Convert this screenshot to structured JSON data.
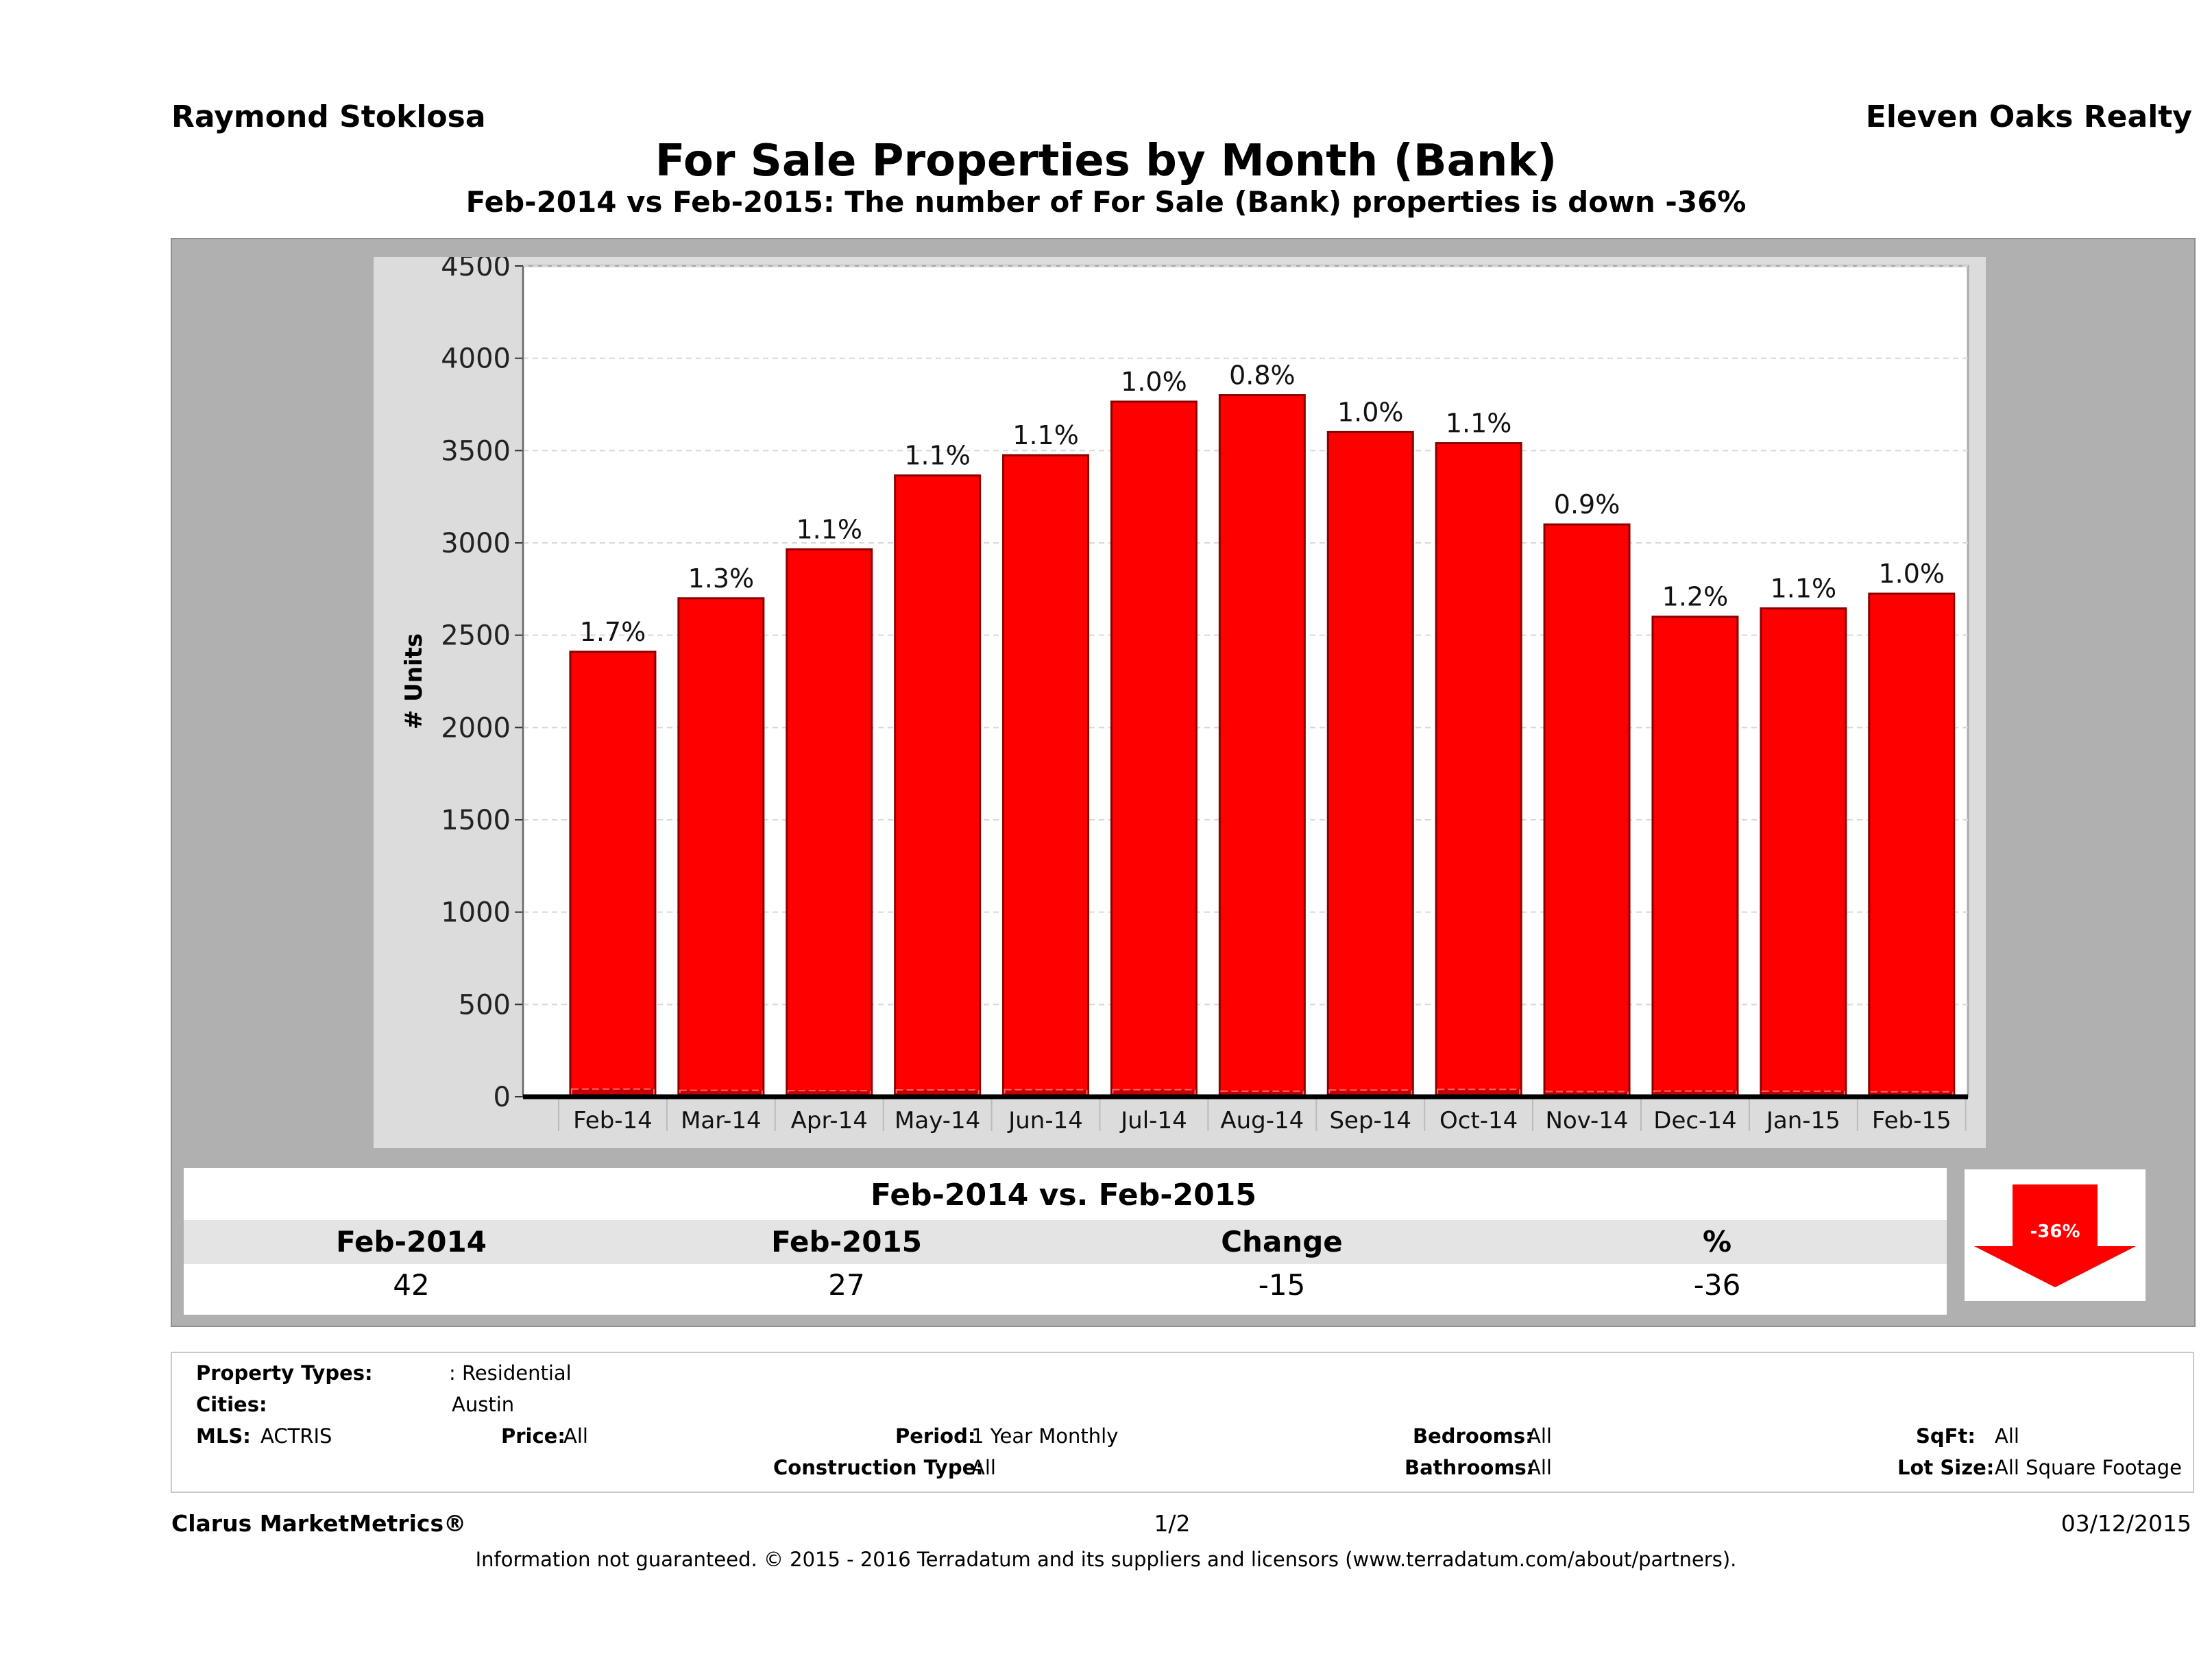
{
  "header": {
    "agent": "Raymond Stoklosa",
    "company": "Eleven Oaks Realty",
    "title": "For Sale Properties by Month (Bank)",
    "subtitle": "Feb-2014 vs Feb-2015: The number of For Sale (Bank)  properties is down -36%"
  },
  "chart_data": {
    "type": "bar",
    "ylabel": "# Units",
    "ylim": [
      0,
      4500
    ],
    "yticks": [
      0,
      500,
      1000,
      1500,
      2000,
      2500,
      3000,
      3500,
      4000,
      4500
    ],
    "grid": true,
    "categories": [
      "Feb-14",
      "Mar-14",
      "Apr-14",
      "May-14",
      "Jun-14",
      "Jul-14",
      "Aug-14",
      "Sep-14",
      "Oct-14",
      "Nov-14",
      "Dec-14",
      "Jan-15",
      "Feb-15"
    ],
    "series": [
      {
        "values": [
          2410,
          2700,
          2965,
          3365,
          3475,
          3765,
          3800,
          3600,
          3540,
          3100,
          2600,
          2645,
          2725
        ],
        "labels": [
          "1.7%",
          "1.3%",
          "1.1%",
          "1.1%",
          "1.1%",
          "1.0%",
          "0.8%",
          "1.0%",
          "1.1%",
          "0.9%",
          "1.2%",
          "1.1%",
          "1.0%"
        ],
        "color": "#ff0000"
      },
      {
        "values": [
          42,
          35,
          33,
          37,
          38,
          38,
          30,
          36,
          40,
          28,
          31,
          30,
          27
        ],
        "color": "#c40000"
      }
    ]
  },
  "comparison": {
    "title": "Feb-2014 vs. Feb-2015",
    "headers": [
      "Feb-2014",
      "Feb-2015",
      "Change",
      "%"
    ],
    "values": [
      "42",
      "27",
      "-15",
      "-36"
    ],
    "badge": "-36%",
    "badge_color": "#ff0000"
  },
  "criteria": {
    "property_types_label": "Property Types:",
    "property_types_value": ": Residential",
    "cities_label": "Cities:",
    "cities_value": "Austin",
    "mls_label": "MLS:",
    "mls_value": "ACTRIS",
    "price_label": "Price:",
    "price_value": "All",
    "period_label": "Period:",
    "period_value": "1 Year Monthly",
    "construction_label": "Construction Type:",
    "construction_value": "All",
    "bedrooms_label": "Bedrooms:",
    "bedrooms_value": "All",
    "bathrooms_label": "Bathrooms:",
    "bathrooms_value": "All",
    "sqft_label": "SqFt:",
    "sqft_value": "All",
    "lotsize_label": "Lot Size:",
    "lotsize_value": "All Square Footage"
  },
  "footer": {
    "brand": "Clarus MarketMetrics®",
    "page": "1/2",
    "date": "03/12/2015",
    "disclaimer": "Information not guaranteed. © 2015 - 2016 Terradatum and its suppliers and licensors (www.terradatum.com/about/partners)."
  }
}
